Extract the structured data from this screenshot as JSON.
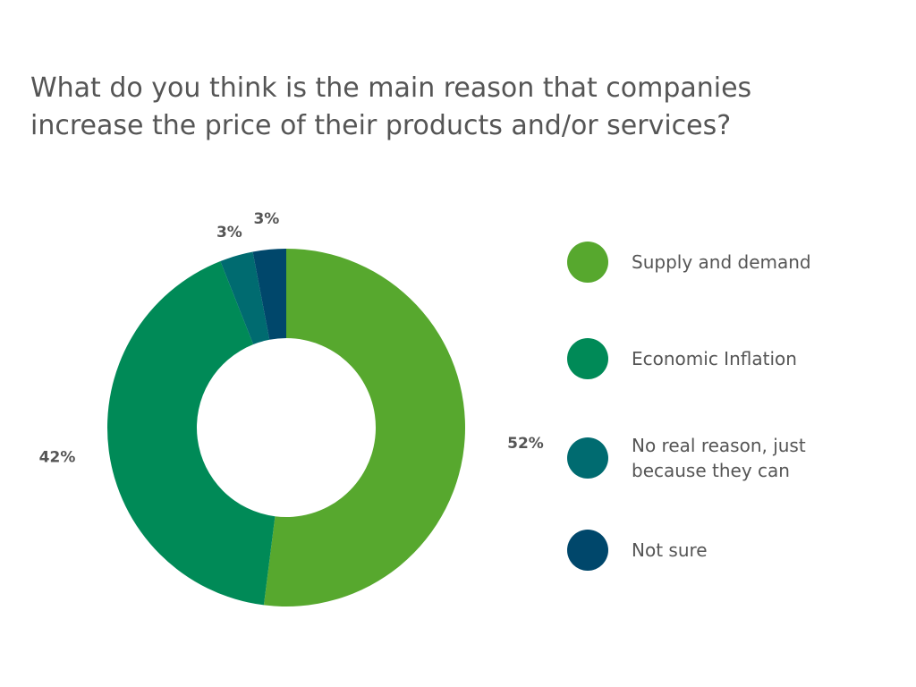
{
  "chart_data": {
    "type": "pie",
    "variant": "donut",
    "title": "What do you think is the main reason that companies increase the price of their products and/or services?",
    "categories": [
      "Supply and demand",
      "Economic Inflation",
      "No real reason, just because they can",
      "Not sure"
    ],
    "values": [
      52,
      42,
      3,
      3
    ],
    "labels": [
      "52%",
      "42%",
      "3%",
      "3%"
    ],
    "colors": [
      "#57a82e",
      "#008a57",
      "#006b70",
      "#00476b"
    ],
    "legend_position": "right"
  }
}
